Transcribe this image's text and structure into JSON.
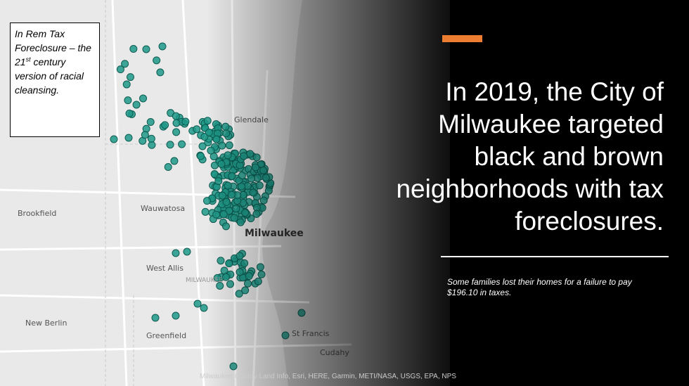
{
  "note_box": {
    "text_before": "In Rem Tax Foreclosure – the 21",
    "superscript": "st",
    "text_after": " century version of racial cleansing."
  },
  "map": {
    "labels": [
      {
        "text": "Glendale",
        "style": "place"
      },
      {
        "text": "Wauwatosa",
        "style": "place"
      },
      {
        "text": "Milwaukee",
        "style": "city"
      },
      {
        "text": "Brookfield",
        "style": "place"
      },
      {
        "text": "West Allis",
        "style": "place"
      },
      {
        "text": "MILWAUKEE",
        "style": "county"
      },
      {
        "text": "New Berlin",
        "style": "place"
      },
      {
        "text": "Greenfield",
        "style": "place"
      },
      {
        "text": "St Francis",
        "style": "place"
      },
      {
        "text": "Cudahy",
        "style": "place"
      }
    ],
    "attribution": "Milwaukee County Land Info, Esri, HERE, Garmin, METI/NASA, USGS, EPA, NPS"
  },
  "headline": [
    "In 2019, the City of",
    "Milwaukee targeted",
    "black and brown",
    "neighborhoods with tax",
    "foreclosures."
  ],
  "subtitle": "Some families lost their homes for a failure to pay $196.10 in taxes."
}
